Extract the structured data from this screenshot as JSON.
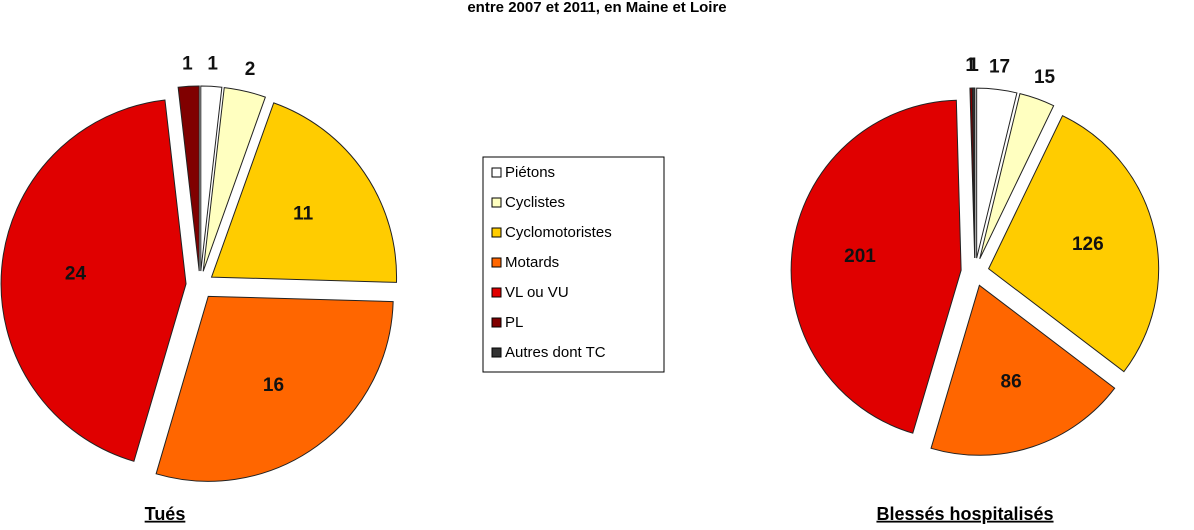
{
  "title": "entre 2007 et 2011, en Maine et Loire",
  "chart_data": [
    {
      "type": "pie",
      "title": "Tués",
      "categories": [
        "Piétons",
        "Cyclistes",
        "Cyclomotoristes",
        "Motards",
        "VL ou VU",
        "PL",
        "Autres dont TC"
      ],
      "values": [
        1,
        2,
        11,
        16,
        24,
        1,
        null
      ],
      "colors": [
        "#ffffff",
        "#ffffc0",
        "#ffcc00",
        "#ff6600",
        "#e00000",
        "#800000",
        "#333333"
      ]
    },
    {
      "type": "pie",
      "title": "Blessés hospitalisés",
      "categories": [
        "Piétons",
        "Cyclistes",
        "Cyclomotoristes",
        "Motards",
        "VL ou VU",
        "PL",
        "Autres dont TC"
      ],
      "values": [
        17,
        15,
        126,
        86,
        201,
        1,
        1
      ],
      "colors": [
        "#ffffff",
        "#ffffc0",
        "#ffcc00",
        "#ff6600",
        "#e00000",
        "#800000",
        "#333333"
      ]
    }
  ]
}
